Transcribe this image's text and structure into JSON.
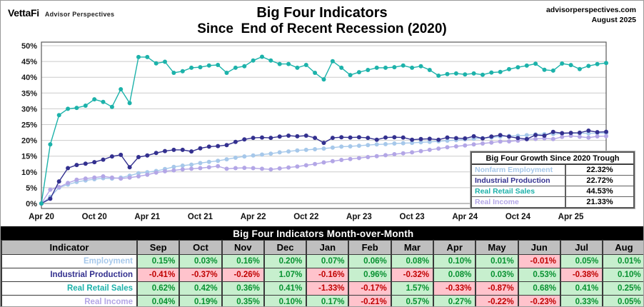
{
  "header": {
    "brand": {
      "name": "VettaFi",
      "tagline": "Advisor Perspectives"
    },
    "title_line1": "Big Four Indicators",
    "title_line2": "Since  End of Recent Recession (2020)",
    "source_line1": "advisorperspectives.com",
    "source_line2": "August 2025"
  },
  "chart_data": {
    "type": "line",
    "title": "Big Four Indicators Since End of Recent Recession (2020)",
    "x_start": "Apr 2020",
    "x_end": "Aug 2025",
    "x_tick_every": 6,
    "x_tick_labels": [
      "Apr 20",
      "Oct 20",
      "Apr 21",
      "Oct 21",
      "Apr 22",
      "Oct 22",
      "Apr 23",
      "Oct 23",
      "Apr 24",
      "Oct 24",
      "Apr 25"
    ],
    "ylim": [
      0,
      50
    ],
    "y_tick_step": 5,
    "y_tick_suffix": "%",
    "grid": true,
    "unit": "cumulative % growth since April 2020 trough, monthly points",
    "series": [
      {
        "name": "Nonfarm Employment",
        "color": "#A6C8EA",
        "final_value": 22.32,
        "values": [
          0.0,
          2.1,
          5.0,
          6.0,
          6.8,
          7.3,
          7.7,
          8.0,
          7.9,
          8.2,
          8.8,
          9.6,
          9.9,
          10.3,
          10.9,
          11.6,
          12.0,
          12.3,
          12.8,
          13.2,
          13.5,
          14.0,
          14.5,
          14.9,
          15.2,
          15.5,
          15.8,
          16.2,
          16.5,
          16.8,
          17.0,
          17.2,
          17.4,
          17.7,
          18.0,
          18.1,
          18.3,
          18.5,
          18.7,
          18.8,
          19.0,
          19.1,
          19.2,
          19.4,
          19.5,
          19.7,
          19.9,
          20.1,
          20.3,
          20.5,
          20.7,
          20.9,
          21.22,
          21.4,
          21.44,
          21.63,
          21.87,
          21.96,
          22.03,
          22.13,
          22.25,
          22.26,
          22.25,
          22.31,
          22.32
        ]
      },
      {
        "name": "Industrial Production",
        "color": "#33308F",
        "final_value": 22.72,
        "values": [
          0.0,
          1.5,
          7.0,
          11.2,
          12.2,
          12.6,
          13.1,
          13.9,
          14.9,
          15.4,
          11.5,
          14.7,
          15.2,
          16.0,
          16.6,
          17.0,
          17.0,
          16.5,
          17.5,
          18.0,
          18.2,
          18.5,
          19.5,
          20.3,
          20.8,
          20.9,
          20.8,
          21.2,
          21.5,
          21.3,
          21.5,
          20.8,
          19.2,
          20.8,
          21.0,
          20.9,
          21.0,
          20.8,
          20.2,
          20.9,
          21.0,
          20.9,
          20.2,
          20.4,
          20.5,
          20.2,
          20.9,
          20.7,
          20.6,
          21.3,
          20.6,
          21.2,
          21.67,
          21.17,
          20.72,
          20.41,
          21.7,
          21.5,
          22.67,
          22.28,
          22.38,
          22.42,
          23.07,
          22.6,
          22.72
        ]
      },
      {
        "name": "Real Retail Sales",
        "color": "#1CB2AA",
        "final_value": 44.53,
        "values": [
          0.0,
          18.7,
          28.0,
          30.0,
          30.3,
          31.0,
          33.0,
          32.2,
          30.6,
          36.2,
          31.8,
          46.4,
          46.4,
          44.4,
          44.9,
          41.4,
          41.9,
          43.0,
          43.2,
          43.7,
          43.9,
          41.4,
          43.0,
          43.5,
          45.3,
          46.5,
          45.3,
          44.2,
          44.2,
          43.0,
          43.9,
          41.4,
          39.3,
          45.1,
          43.0,
          40.7,
          41.6,
          42.3,
          43.0,
          43.0,
          43.2,
          43.7,
          43.0,
          43.5,
          42.3,
          40.5,
          41.0,
          41.2,
          40.9,
          41.2,
          40.8,
          41.5,
          41.68,
          42.56,
          43.16,
          43.68,
          44.27,
          42.35,
          42.11,
          44.34,
          43.86,
          42.61,
          43.58,
          44.17,
          44.53
        ]
      },
      {
        "name": "Real Income",
        "color": "#B3A6E6",
        "final_value": 21.33,
        "values": [
          0.0,
          4.4,
          5.2,
          6.5,
          7.5,
          7.9,
          8.2,
          8.6,
          8.2,
          7.9,
          8.2,
          8.6,
          9.1,
          9.8,
          10.2,
          10.5,
          10.8,
          11.0,
          11.2,
          11.5,
          11.8,
          11.0,
          11.2,
          11.3,
          11.2,
          11.0,
          10.8,
          11.1,
          11.4,
          11.7,
          12.1,
          12.5,
          13.0,
          13.4,
          13.8,
          14.1,
          14.4,
          14.7,
          15.0,
          15.3,
          15.6,
          15.9,
          16.2,
          16.6,
          17.0,
          17.4,
          17.8,
          18.1,
          18.4,
          18.7,
          19.0,
          19.3,
          19.63,
          19.68,
          19.91,
          20.33,
          20.45,
          20.65,
          20.4,
          21.09,
          21.42,
          21.15,
          20.87,
          21.27,
          21.33
        ]
      }
    ],
    "legend_position": "inside lower right"
  },
  "legend": {
    "title": "Big Four Growth Since 2020 Trough",
    "rows": [
      {
        "label": "Nonfarm Employment",
        "value": "22.32%",
        "color": "#A6C8EA"
      },
      {
        "label": "Industrial Production",
        "value": "22.72%",
        "color": "#33308F"
      },
      {
        "label": "Real Retail Sales",
        "value": "44.53%",
        "color": "#1CB2AA"
      },
      {
        "label": "Real Income",
        "value": "21.33%",
        "color": "#B3A6E6"
      }
    ]
  },
  "table": {
    "title": "Big Four Indicators Month-over-Month",
    "columns": [
      "Indicator",
      "Sep",
      "Oct",
      "Nov",
      "Dec",
      "Jan",
      "Feb",
      "Mar",
      "Apr",
      "May",
      "Jun",
      "Jul",
      "Aug"
    ],
    "rows": [
      {
        "label": "Employment",
        "color": "#A6C8EA",
        "values": [
          "0.15%",
          "0.03%",
          "0.16%",
          "0.20%",
          "0.07%",
          "0.06%",
          "0.08%",
          "0.10%",
          "0.01%",
          "-0.01%",
          "0.05%",
          "0.01%"
        ]
      },
      {
        "label": "Industrial Production",
        "color": "#33308F",
        "values": [
          "-0.41%",
          "-0.37%",
          "-0.26%",
          "1.07%",
          "-0.16%",
          "0.96%",
          "-0.32%",
          "0.08%",
          "0.03%",
          "0.53%",
          "-0.38%",
          "0.10%"
        ]
      },
      {
        "label": "Real Retail Sales",
        "color": "#1CB2AA",
        "values": [
          "0.62%",
          "0.42%",
          "0.36%",
          "0.41%",
          "-1.33%",
          "-0.17%",
          "1.57%",
          "-0.33%",
          "-0.87%",
          "0.68%",
          "0.41%",
          "0.25%"
        ]
      },
      {
        "label": "Real Income",
        "color": "#B3A6E6",
        "values": [
          "0.04%",
          "0.19%",
          "0.35%",
          "0.10%",
          "0.17%",
          "-0.21%",
          "0.57%",
          "0.27%",
          "-0.22%",
          "-0.23%",
          "0.33%",
          "0.05%"
        ]
      }
    ],
    "positive_bg": "#C7EFCE",
    "positive_text": "#079130",
    "negative_bg": "#FFC3CC",
    "negative_text": "#C00000"
  }
}
